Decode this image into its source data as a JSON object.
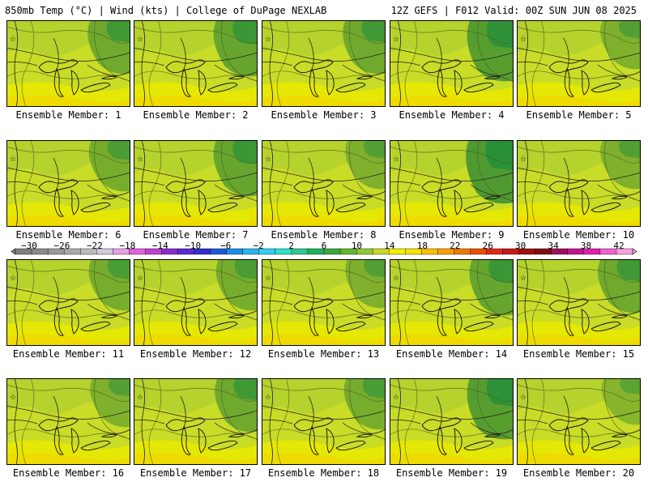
{
  "header": {
    "left_title": "850mb Temp (°C) | Wind (kts) | College of DuPage NEXLAB",
    "right_title": "12Z GEFS | F012 Valid: 00Z SUN JUN 08 2025"
  },
  "members": [
    {
      "label": "Ensemble Member: 1",
      "green_intensity": 0.55
    },
    {
      "label": "Ensemble Member: 2",
      "green_intensity": 0.6
    },
    {
      "label": "Ensemble Member: 3",
      "green_intensity": 0.55
    },
    {
      "label": "Ensemble Member: 4",
      "green_intensity": 0.7
    },
    {
      "label": "Ensemble Member: 5",
      "green_intensity": 0.45
    },
    {
      "label": "Ensemble Member: 6",
      "green_intensity": 0.5
    },
    {
      "label": "Ensemble Member: 7",
      "green_intensity": 0.6
    },
    {
      "label": "Ensemble Member: 8",
      "green_intensity": 0.45
    },
    {
      "label": "Ensemble Member: 9",
      "green_intensity": 0.75
    },
    {
      "label": "Ensemble Member: 10",
      "green_intensity": 0.45
    },
    {
      "label": "Ensemble Member: 11",
      "green_intensity": 0.5
    },
    {
      "label": "Ensemble Member: 12",
      "green_intensity": 0.5
    },
    {
      "label": "Ensemble Member: 13",
      "green_intensity": 0.45
    },
    {
      "label": "Ensemble Member: 14",
      "green_intensity": 0.6
    },
    {
      "label": "Ensemble Member: 15",
      "green_intensity": 0.55
    },
    {
      "label": "Ensemble Member: 16",
      "green_intensity": 0.45
    },
    {
      "label": "Ensemble Member: 17",
      "green_intensity": 0.55
    },
    {
      "label": "Ensemble Member: 18",
      "green_intensity": 0.5
    },
    {
      "label": "Ensemble Member: 19",
      "green_intensity": 0.7
    },
    {
      "label": "Ensemble Member: 20",
      "green_intensity": 0.4
    }
  ],
  "colorbar": {
    "ticks": [
      "-30",
      "-26",
      "-22",
      "-18",
      "-14",
      "-10",
      "-6",
      "-2",
      "2",
      "6",
      "10",
      "14",
      "18",
      "22",
      "26",
      "30",
      "34",
      "38",
      "42"
    ],
    "colors": [
      "#7f7f7f",
      "#8a8a8a",
      "#9a9a9a",
      "#aaaaaa",
      "#bdbdbd",
      "#d0c8dc",
      "#e6a0e6",
      "#e060e0",
      "#c040d0",
      "#8a2bd0",
      "#5a2bd0",
      "#3030d0",
      "#1e5ad8",
      "#1e8ce8",
      "#28b4f0",
      "#30d0f0",
      "#30e0c8",
      "#30c890",
      "#20b060",
      "#3ca83c",
      "#60b830",
      "#90c830",
      "#c8d828",
      "#f0f000",
      "#f8e000",
      "#f8c000",
      "#f8a000",
      "#f07800",
      "#e85000",
      "#e02818",
      "#c81818",
      "#a01010",
      "#801010",
      "#a01060",
      "#c01890",
      "#e020b0",
      "#f060d0",
      "#f8a0e0"
    ],
    "unit": "°C"
  }
}
